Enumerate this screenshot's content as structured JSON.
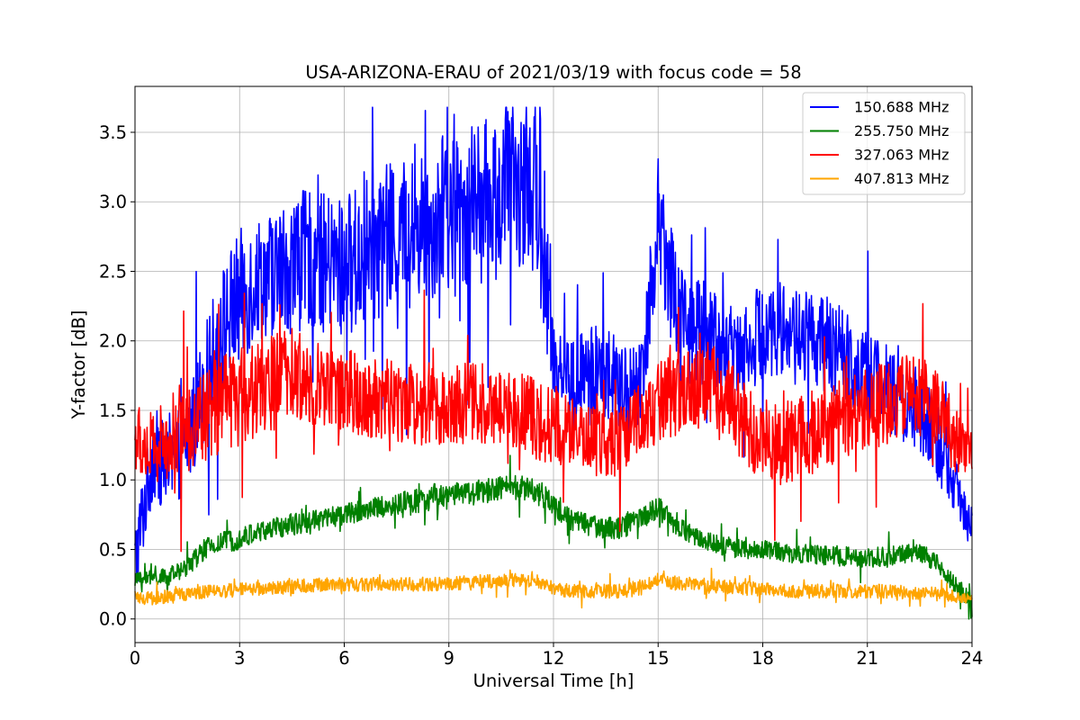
{
  "chart_data": {
    "type": "line",
    "title": "USA-ARIZONA-ERAU of 2021/03/19 with focus code = 58",
    "xlabel": "Universal Time [h]",
    "ylabel": "Y-factor [dB]",
    "xlim": [
      0,
      24
    ],
    "ylim": [
      -0.17,
      3.83
    ],
    "xticks": [
      0,
      3,
      6,
      9,
      12,
      15,
      18,
      21,
      24
    ],
    "xtick_labels": [
      "0",
      "3",
      "6",
      "9",
      "12",
      "15",
      "18",
      "21",
      "24"
    ],
    "yticks": [
      0.0,
      0.5,
      1.0,
      1.5,
      2.0,
      2.5,
      3.0,
      3.5
    ],
    "ytick_labels": [
      "0.0",
      "0.5",
      "1.0",
      "1.5",
      "2.0",
      "2.5",
      "3.0",
      "3.5"
    ],
    "grid": true,
    "legend_position": "top-right",
    "x": [
      0,
      0.5,
      1,
      1.5,
      2,
      2.5,
      3,
      3.5,
      4,
      4.5,
      5,
      5.5,
      6,
      6.5,
      7,
      7.5,
      8,
      8.5,
      9,
      9.5,
      10,
      10.5,
      11,
      11.5,
      12,
      12.5,
      13,
      13.5,
      14,
      14.5,
      15,
      15.5,
      16,
      16.5,
      17,
      17.5,
      18,
      18.5,
      19,
      19.5,
      20,
      20.5,
      21,
      21.5,
      22,
      22.5,
      23,
      23.5,
      24
    ],
    "series": [
      {
        "name": "150.688 MHz",
        "color": "#0000ff",
        "values": [
          0.4,
          1.2,
          1.05,
          1.3,
          1.7,
          2.1,
          2.3,
          2.45,
          2.5,
          2.55,
          2.6,
          2.55,
          2.55,
          2.6,
          2.7,
          2.75,
          2.8,
          2.85,
          2.9,
          2.95,
          3.0,
          3.05,
          3.1,
          3.05,
          1.9,
          1.7,
          1.75,
          1.8,
          1.6,
          1.7,
          2.9,
          2.3,
          2.05,
          2.05,
          1.9,
          2.0,
          2.05,
          2.1,
          2.05,
          2.0,
          1.95,
          1.85,
          1.75,
          1.7,
          1.5,
          1.5,
          1.3,
          0.95,
          0.7
        ],
        "amp": [
          0.3,
          0.35,
          0.3,
          0.35,
          0.4,
          0.45,
          0.5,
          0.45,
          0.45,
          0.5,
          0.5,
          0.5,
          0.5,
          0.55,
          0.55,
          0.55,
          0.55,
          0.55,
          0.6,
          0.6,
          0.6,
          0.6,
          0.6,
          0.55,
          0.35,
          0.35,
          0.35,
          0.35,
          0.35,
          0.35,
          0.45,
          0.45,
          0.4,
          0.4,
          0.35,
          0.35,
          0.35,
          0.35,
          0.35,
          0.35,
          0.35,
          0.35,
          0.35,
          0.3,
          0.3,
          0.3,
          0.3,
          0.2,
          0.2
        ]
      },
      {
        "name": "255.750 MHz",
        "color": "#008000",
        "values": [
          0.28,
          0.3,
          0.3,
          0.38,
          0.5,
          0.55,
          0.58,
          0.62,
          0.65,
          0.68,
          0.7,
          0.72,
          0.75,
          0.78,
          0.8,
          0.82,
          0.85,
          0.86,
          0.88,
          0.9,
          0.92,
          0.94,
          0.95,
          0.93,
          0.82,
          0.72,
          0.68,
          0.65,
          0.66,
          0.72,
          0.8,
          0.68,
          0.6,
          0.55,
          0.52,
          0.5,
          0.5,
          0.48,
          0.47,
          0.46,
          0.45,
          0.45,
          0.44,
          0.45,
          0.46,
          0.48,
          0.4,
          0.25,
          0.12
        ],
        "amp": [
          0.05,
          0.06,
          0.06,
          0.07,
          0.08,
          0.08,
          0.08,
          0.08,
          0.08,
          0.08,
          0.08,
          0.08,
          0.08,
          0.08,
          0.08,
          0.08,
          0.09,
          0.09,
          0.09,
          0.09,
          0.09,
          0.09,
          0.09,
          0.09,
          0.08,
          0.08,
          0.08,
          0.08,
          0.08,
          0.08,
          0.08,
          0.08,
          0.07,
          0.07,
          0.07,
          0.07,
          0.07,
          0.07,
          0.07,
          0.07,
          0.07,
          0.07,
          0.07,
          0.07,
          0.07,
          0.07,
          0.07,
          0.06,
          0.06
        ]
      },
      {
        "name": "327.063 MHz",
        "color": "#ff0000",
        "values": [
          1.3,
          1.2,
          1.3,
          1.4,
          1.45,
          1.55,
          1.6,
          1.65,
          1.7,
          1.75,
          1.7,
          1.68,
          1.65,
          1.6,
          1.6,
          1.58,
          1.55,
          1.55,
          1.55,
          1.55,
          1.55,
          1.55,
          1.5,
          1.45,
          1.4,
          1.35,
          1.3,
          1.25,
          1.3,
          1.45,
          1.55,
          1.6,
          1.65,
          1.7,
          1.6,
          1.4,
          1.3,
          1.25,
          1.3,
          1.35,
          1.4,
          1.45,
          1.5,
          1.55,
          1.6,
          1.6,
          1.55,
          1.3,
          1.25
        ],
        "amp": [
          0.25,
          0.3,
          0.3,
          0.35,
          0.35,
          0.35,
          0.35,
          0.35,
          0.35,
          0.35,
          0.3,
          0.3,
          0.3,
          0.3,
          0.3,
          0.3,
          0.3,
          0.3,
          0.3,
          0.3,
          0.3,
          0.3,
          0.3,
          0.3,
          0.3,
          0.25,
          0.25,
          0.25,
          0.25,
          0.25,
          0.3,
          0.3,
          0.3,
          0.3,
          0.3,
          0.3,
          0.3,
          0.3,
          0.3,
          0.3,
          0.3,
          0.3,
          0.3,
          0.3,
          0.3,
          0.3,
          0.3,
          0.25,
          0.2
        ]
      },
      {
        "name": "407.813 MHz",
        "color": "#ffa500",
        "values": [
          0.15,
          0.15,
          0.16,
          0.18,
          0.2,
          0.2,
          0.21,
          0.22,
          0.22,
          0.23,
          0.24,
          0.25,
          0.25,
          0.25,
          0.25,
          0.25,
          0.25,
          0.25,
          0.26,
          0.26,
          0.27,
          0.27,
          0.28,
          0.28,
          0.22,
          0.2,
          0.2,
          0.2,
          0.2,
          0.22,
          0.28,
          0.26,
          0.25,
          0.24,
          0.23,
          0.22,
          0.21,
          0.2,
          0.2,
          0.2,
          0.2,
          0.2,
          0.2,
          0.2,
          0.19,
          0.19,
          0.18,
          0.16,
          0.14
        ],
        "amp": [
          0.04,
          0.05,
          0.05,
          0.05,
          0.05,
          0.05,
          0.05,
          0.05,
          0.05,
          0.05,
          0.05,
          0.05,
          0.05,
          0.05,
          0.05,
          0.05,
          0.05,
          0.05,
          0.05,
          0.05,
          0.05,
          0.05,
          0.05,
          0.05,
          0.05,
          0.05,
          0.05,
          0.05,
          0.05,
          0.05,
          0.05,
          0.05,
          0.05,
          0.05,
          0.05,
          0.05,
          0.05,
          0.05,
          0.05,
          0.05,
          0.05,
          0.05,
          0.05,
          0.05,
          0.05,
          0.05,
          0.05,
          0.04,
          0.04
        ]
      }
    ]
  }
}
